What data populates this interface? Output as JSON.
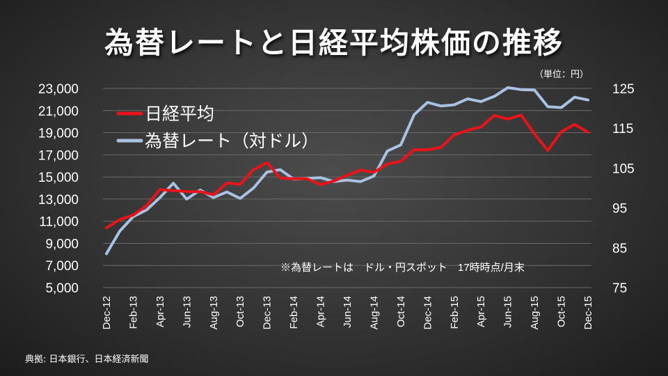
{
  "title": "為替レートと日経平均株価の推移",
  "unit_note": "（単位：円）",
  "source": "典拠: 日本銀行、日本経済新聞",
  "chart_data": {
    "type": "line",
    "x": [
      "Dec-12",
      "Jan-13",
      "Feb-13",
      "Mar-13",
      "Apr-13",
      "May-13",
      "Jun-13",
      "Jul-13",
      "Aug-13",
      "Sep-13",
      "Oct-13",
      "Nov-13",
      "Dec-13",
      "Jan-14",
      "Feb-14",
      "Mar-14",
      "Apr-14",
      "May-14",
      "Jun-14",
      "Jul-14",
      "Aug-14",
      "Sep-14",
      "Oct-14",
      "Nov-14",
      "Dec-14",
      "Jan-15",
      "Feb-15",
      "Mar-15",
      "Apr-15",
      "May-15",
      "Jun-15",
      "Jul-15",
      "Aug-15",
      "Sep-15",
      "Oct-15",
      "Nov-15",
      "Dec-15"
    ],
    "x_tick_labels": [
      "Dec-12",
      "Feb-13",
      "Apr-13",
      "Jun-13",
      "Aug-13",
      "Oct-13",
      "Dec-13",
      "Feb-14",
      "Apr-14",
      "Jun-14",
      "Aug-14",
      "Oct-14",
      "Dec-14",
      "Feb-15",
      "Apr-15",
      "Jun-15",
      "Aug-15",
      "Oct-15",
      "Dec-15"
    ],
    "series": [
      {
        "name": "日経平均",
        "axis": "left",
        "color": "#e8141a",
        "values": [
          10400,
          11140,
          11560,
          12400,
          13860,
          13770,
          13680,
          13670,
          13390,
          14450,
          14330,
          15660,
          16290,
          14900,
          14840,
          14830,
          14300,
          14630,
          15160,
          15620,
          15420,
          16170,
          16410,
          17460,
          17450,
          17670,
          18800,
          19210,
          19520,
          20560,
          20240,
          20590,
          18890,
          17390,
          19080,
          19750,
          19030
        ]
      },
      {
        "name": "為替レート（対ドル）",
        "axis": "right",
        "color": "#a9c2e2",
        "values": [
          83.5,
          89.2,
          92.8,
          94.5,
          97.6,
          101.2,
          97.2,
          99.5,
          97.6,
          99.0,
          97.4,
          100.0,
          104.0,
          104.6,
          102.2,
          102.4,
          102.6,
          101.6,
          102.0,
          101.6,
          103.0,
          109.3,
          110.8,
          118.4,
          121.5,
          120.6,
          120.9,
          122.4,
          121.7,
          123.0,
          125.2,
          124.7,
          124.6,
          120.4,
          120.2,
          122.8,
          122.1
        ]
      }
    ],
    "y_left": {
      "min": 5000,
      "max": 23000,
      "ticks": [
        "5,000",
        "7,000",
        "9,000",
        "11,000",
        "13,000",
        "15,000",
        "17,000",
        "19,000",
        "21,000",
        "23,000"
      ]
    },
    "y_right": {
      "min": 75,
      "max": 125,
      "ticks": [
        "75",
        "85",
        "95",
        "105",
        "115",
        "125"
      ]
    },
    "annotation": "※為替レートは　ドル・円スポット　17時時点/月末",
    "legend_position": "top-left",
    "grid": true
  }
}
